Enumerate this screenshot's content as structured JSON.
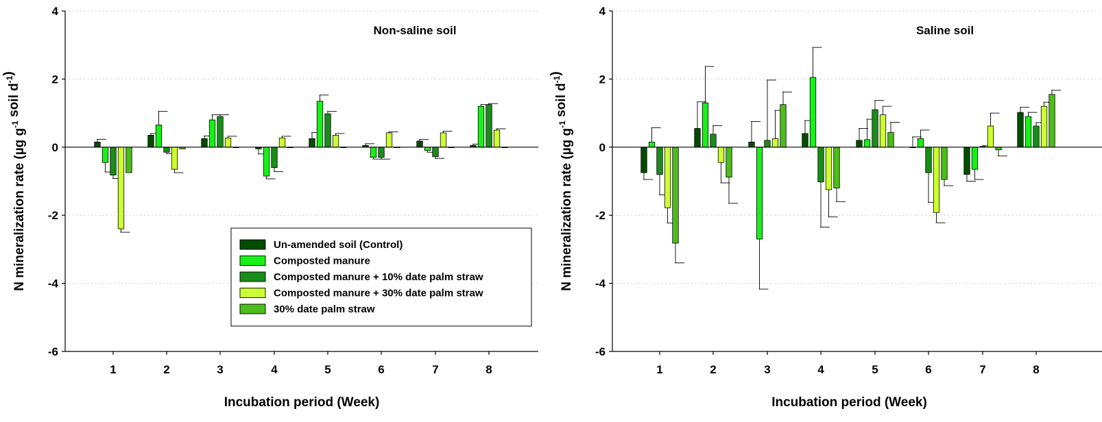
{
  "chart_data": [
    {
      "type": "bar",
      "title": "Non-saline soil",
      "xlabel": "Incubation period (Week)",
      "ylabel": {
        "main": "N mineralization rate (µg g",
        "sup1": "-1",
        "mid": " soil d",
        "sup2": "-1",
        "end": ")"
      },
      "categories": [
        "1",
        "2",
        "3",
        "4",
        "5",
        "6",
        "7",
        "8"
      ],
      "ylim": [
        -6,
        4
      ],
      "yticks": [
        "-6",
        "-4",
        "-2",
        "0",
        "2",
        "4"
      ],
      "grid": "dotted horizontal",
      "legend_placement": "lower-right",
      "series": [
        {
          "name": "Un-amended soil (Control)",
          "color": "#004d00",
          "values": [
            0.15,
            0.35,
            0.25,
            -0.05,
            0.25,
            0.05,
            0.18,
            0.05
          ],
          "errors": [
            0.08,
            0.05,
            0.08,
            0.15,
            0.18,
            0.05,
            0.05,
            0.04
          ]
        },
        {
          "name": "Composted manure",
          "color": "#19f019",
          "values": [
            -0.45,
            0.65,
            0.8,
            -0.85,
            1.35,
            -0.3,
            -0.1,
            1.2
          ],
          "errors": [
            0.28,
            0.4,
            0.15,
            0.08,
            0.18,
            0.05,
            0.05,
            0.05
          ]
        },
        {
          "name": "Composted manure + 10% date palm straw",
          "color": "#1a8c1a",
          "values": [
            -0.82,
            -0.15,
            0.9,
            -0.6,
            0.98,
            -0.3,
            -0.28,
            1.25
          ],
          "errors": [
            0.1,
            0.04,
            0.05,
            0.12,
            0.07,
            0.05,
            0.05,
            0.03
          ]
        },
        {
          "name": "Composted manure + 30% date palm straw",
          "color": "#ccff33",
          "values": [
            -2.4,
            -0.65,
            0.27,
            0.27,
            0.35,
            0.42,
            0.42,
            0.5
          ],
          "errors": [
            0.1,
            0.1,
            0.05,
            0.05,
            0.05,
            0.03,
            0.05,
            0.04
          ]
        },
        {
          "name": "30% date palm straw",
          "color": "#4cbd1a",
          "values": [
            -0.75,
            -0.05,
            0.0,
            0.0,
            0.0,
            0.0,
            0.0,
            0.0
          ],
          "errors": [
            0.0,
            0.0,
            0.0,
            0.0,
            0.0,
            0.0,
            0.0,
            0.0
          ]
        }
      ]
    },
    {
      "type": "bar",
      "title": "Saline soil",
      "xlabel": "Incubation period (Week)",
      "ylabel": {
        "main": "N mineralization rate (µg g",
        "sup1": "-1",
        "mid": " soil d",
        "sup2": "-1",
        "end": ")"
      },
      "categories": [
        "1",
        "2",
        "3",
        "4",
        "5",
        "6",
        "7",
        "8"
      ],
      "ylim": [
        -6,
        4
      ],
      "yticks": [
        "-6",
        "-4",
        "-2",
        "0",
        "2",
        "4"
      ],
      "grid": "dotted horizontal",
      "series": [
        {
          "name": "Un-amended soil (Control)",
          "color": "#004d00",
          "values": [
            -0.75,
            0.55,
            0.15,
            0.4,
            0.2,
            0.0,
            -0.8,
            1.02
          ],
          "errors": [
            0.2,
            0.78,
            0.6,
            0.38,
            0.35,
            0.3,
            0.2,
            0.15
          ]
        },
        {
          "name": "Composted manure",
          "color": "#19f019",
          "values": [
            0.15,
            1.3,
            -2.7,
            2.05,
            0.22,
            0.25,
            -0.65,
            0.9
          ],
          "errors": [
            0.42,
            1.07,
            1.47,
            0.88,
            0.6,
            0.25,
            0.3,
            0.12
          ]
        },
        {
          "name": "Composted manure + 10% date palm straw",
          "color": "#1a8c1a",
          "values": [
            -0.8,
            0.38,
            0.2,
            -1.02,
            1.1,
            -0.75,
            0.02,
            0.62
          ],
          "errors": [
            0.6,
            0.25,
            1.77,
            1.33,
            0.27,
            0.87,
            0.02,
            0.1
          ]
        },
        {
          "name": "Composted manure + 30% date palm straw",
          "color": "#ccff33",
          "values": [
            -1.78,
            -0.45,
            0.25,
            -1.25,
            0.95,
            -1.92,
            0.62,
            1.2
          ],
          "errors": [
            0.45,
            0.6,
            0.83,
            0.8,
            0.25,
            0.3,
            0.38,
            0.12
          ]
        },
        {
          "name": "30% date palm straw",
          "color": "#4cbd1a",
          "values": [
            -2.82,
            -0.88,
            1.25,
            -1.2,
            0.43,
            -0.95,
            -0.08,
            1.55
          ],
          "errors": [
            0.58,
            0.77,
            0.37,
            0.4,
            0.3,
            0.18,
            0.18,
            0.12
          ]
        }
      ]
    }
  ]
}
